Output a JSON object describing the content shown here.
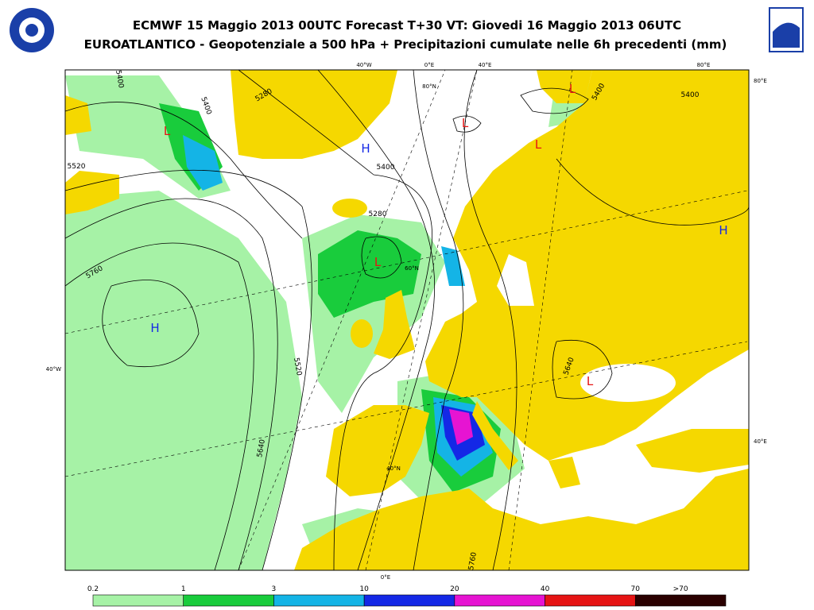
{
  "header": {
    "title": "ECMWF 15 Maggio 2013 00UTC Forecast T+30 VT: Giovedi 16 Maggio 2013 06UTC",
    "subtitle": "EUROATLANTICO - Geopotenziale a 500 hPa + Precipitazioni cumulate nelle 6h precedenti (mm)"
  },
  "map": {
    "graticule_labels": [
      "40°W",
      "0°E",
      "40°E",
      "80°E",
      "80°E",
      "40°W",
      "40°E",
      "0°E",
      "80°N",
      "60°N",
      "40°N"
    ],
    "contour_labels": [
      5400,
      5280,
      5400,
      5520,
      5400,
      5280,
      5760,
      5520,
      5640,
      5400,
      5400,
      5640,
      5760
    ],
    "pressure_centers": [
      "L",
      "H",
      "L",
      "L",
      "L",
      "L",
      "H",
      "H",
      "L"
    ]
  },
  "legend": {
    "labels": [
      "0.2",
      "1",
      "3",
      "10",
      "20",
      "40",
      "70",
      ">70"
    ],
    "colors": [
      "#a6f2a6",
      "#19cc3c",
      "#14b4e6",
      "#1428e6",
      "#e614d2",
      "#e61414",
      "#2a0000"
    ]
  }
}
